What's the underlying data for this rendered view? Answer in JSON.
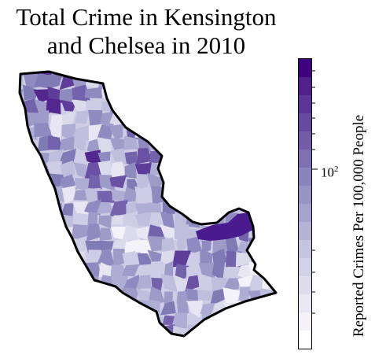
{
  "title_line1": "Total Crime in Kensington",
  "title_line2": "and Chelsea in 2010",
  "map": {
    "type": "choropleth",
    "region": "Kensington and Chelsea",
    "year": "2010",
    "colormap": "Purples",
    "scale": "log",
    "border_color": "#000000",
    "highlight_color": "#4a1b8f"
  },
  "colorbar": {
    "label": "Reported Crimes Per 100,000 People",
    "tick_base": "10",
    "tick_exp": "2",
    "bands": 16,
    "color_low": "#ffffff",
    "color_high": "#3f007d"
  }
}
